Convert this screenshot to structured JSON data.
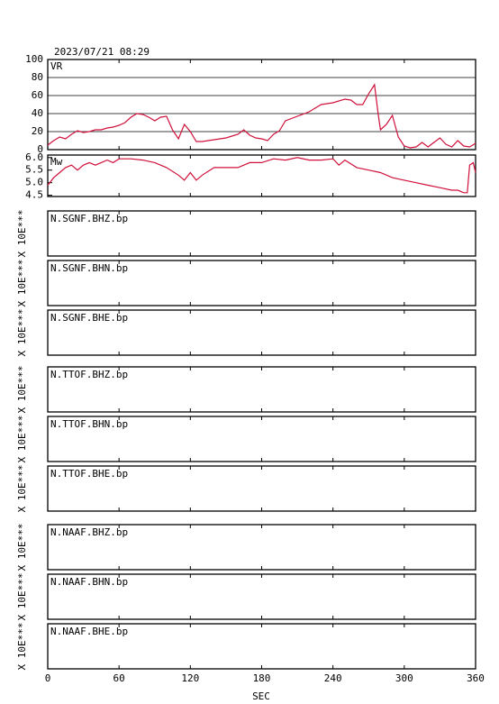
{
  "title": "2023/07/21 08:29",
  "x_axis": {
    "label": "SEC",
    "xlim": [
      0,
      360
    ],
    "xticks": [
      0,
      60,
      120,
      180,
      240,
      300,
      360
    ]
  },
  "chart_data": [
    {
      "type": "line",
      "label": "VR",
      "color": "#d0103a",
      "ylim": [
        0,
        100
      ],
      "yticks": [
        0,
        20,
        40,
        60,
        80,
        100
      ],
      "grid": true,
      "x": [
        0,
        5,
        10,
        15,
        20,
        25,
        30,
        35,
        40,
        45,
        50,
        55,
        60,
        65,
        70,
        75,
        80,
        85,
        90,
        95,
        100,
        105,
        110,
        115,
        120,
        125,
        130,
        140,
        150,
        160,
        165,
        170,
        175,
        180,
        185,
        190,
        195,
        200,
        210,
        220,
        230,
        240,
        250,
        255,
        260,
        265,
        270,
        275,
        278,
        280,
        285,
        290,
        295,
        300,
        305,
        310,
        315,
        320,
        325,
        330,
        335,
        340,
        345,
        350,
        355,
        360
      ],
      "values": [
        5,
        10,
        14,
        12,
        17,
        21,
        19,
        20,
        22,
        22,
        24,
        25,
        27,
        30,
        36,
        40,
        39,
        36,
        32,
        36,
        37,
        22,
        12,
        28,
        20,
        9,
        9,
        11,
        13,
        17,
        22,
        16,
        13,
        12,
        10,
        17,
        21,
        32,
        37,
        42,
        50,
        52,
        56,
        55,
        50,
        50,
        62,
        72,
        40,
        22,
        28,
        38,
        14,
        4,
        2,
        3,
        8,
        3,
        8,
        13,
        6,
        3,
        10,
        4,
        3,
        7
      ]
    },
    {
      "type": "line",
      "label": "Mw",
      "color": "#d0103a",
      "ylim": [
        4.45,
        6.1
      ],
      "yticks": [
        {
          "value": 6,
          "label": "6.0"
        },
        5.5,
        {
          "value": 5,
          "label": "5.0"
        },
        4.5
      ],
      "grid": false,
      "x": [
        0,
        5,
        10,
        15,
        20,
        25,
        30,
        35,
        40,
        45,
        50,
        55,
        60,
        70,
        80,
        90,
        100,
        110,
        115,
        120,
        125,
        130,
        140,
        150,
        160,
        170,
        180,
        190,
        200,
        210,
        220,
        230,
        240,
        245,
        250,
        260,
        270,
        280,
        290,
        300,
        310,
        320,
        330,
        340,
        345,
        350,
        353,
        355,
        358,
        360
      ],
      "values": [
        4.9,
        5.2,
        5.4,
        5.6,
        5.7,
        5.5,
        5.7,
        5.8,
        5.7,
        5.8,
        5.9,
        5.8,
        5.95,
        5.95,
        5.9,
        5.8,
        5.6,
        5.3,
        5.1,
        5.4,
        5.1,
        5.3,
        5.6,
        5.6,
        5.6,
        5.8,
        5.8,
        5.95,
        5.9,
        6.0,
        5.9,
        5.9,
        5.95,
        5.7,
        5.9,
        5.6,
        5.5,
        5.4,
        5.2,
        5.1,
        5.0,
        4.9,
        4.8,
        4.7,
        4.7,
        4.6,
        4.6,
        5.7,
        5.8,
        5.4
      ]
    },
    {
      "type": "trace",
      "label": "N.SGNF.BHZ.bp",
      "y_label": "X 10E***"
    },
    {
      "type": "trace",
      "label": "N.SGNF.BHN.bp",
      "y_label": "X 10E***"
    },
    {
      "type": "trace",
      "label": "N.SGNF.BHE.bp",
      "y_label": "X 10E***"
    },
    {
      "type": "trace",
      "label": "N.TTOF.BHZ.bp",
      "y_label": "X 10E***"
    },
    {
      "type": "trace",
      "label": "N.TTOF.BHN.bp",
      "y_label": "X 10E***"
    },
    {
      "type": "trace",
      "label": "N.TTOF.BHE.bp",
      "y_label": "X 10E***"
    },
    {
      "type": "trace",
      "label": "N.NAAF.BHZ.bp",
      "y_label": "X 10E***"
    },
    {
      "type": "trace",
      "label": "N.NAAF.BHN.bp",
      "y_label": "X 10E***"
    },
    {
      "type": "trace",
      "label": "N.NAAF.BHE.bp",
      "y_label": "X 10E***"
    }
  ]
}
